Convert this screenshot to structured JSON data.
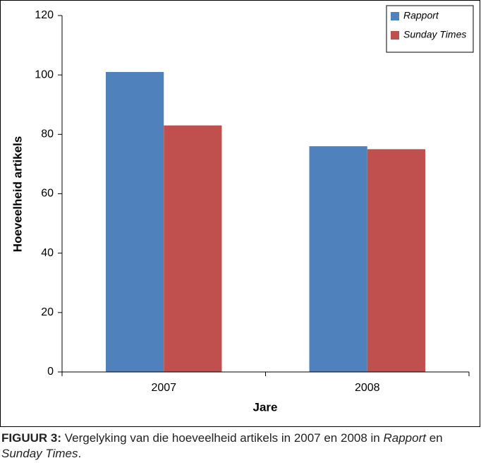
{
  "chart_data": {
    "type": "bar",
    "x_label": "Jare",
    "y_label": "Hoeveelheid artikels",
    "categories": [
      "2007",
      "2008"
    ],
    "series": [
      {
        "name": "Rapport",
        "color": "#4f81bd",
        "values": [
          101,
          76
        ]
      },
      {
        "name": "Sunday Times",
        "color": "#c0504d",
        "values": [
          83,
          75
        ]
      }
    ],
    "ylim": [
      0,
      120
    ],
    "yticks": [
      0,
      20,
      40,
      60,
      80,
      100,
      120
    ],
    "grid": false,
    "legend": "top-right"
  },
  "caption": {
    "label": "FIGUUR 3:",
    "parts": [
      {
        "text": " Vergelyking van die hoeveelheid artikels in 2007 en 2008 in ",
        "style": "normal"
      },
      {
        "text": "Rapport",
        "style": "italic"
      },
      {
        "text": " en ",
        "style": "normal"
      },
      {
        "text": "Sunday Times",
        "style": "italic"
      },
      {
        "text": ".",
        "style": "normal"
      }
    ]
  }
}
